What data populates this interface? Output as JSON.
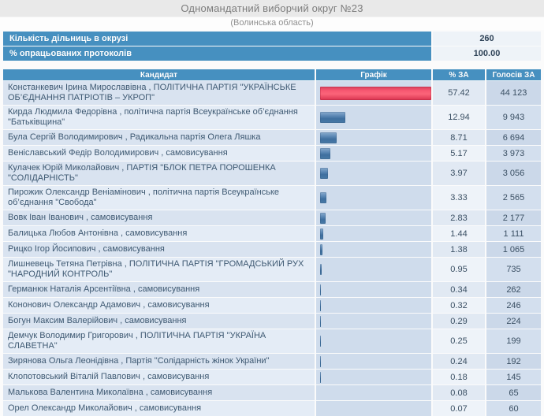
{
  "page": {
    "title": "Одномандатний виборчий округ №23",
    "subtitle": "(Волинська область)"
  },
  "summary": [
    {
      "label": "Кількість дільниць в окрузі",
      "value": "260"
    },
    {
      "label": "% опрацьованих протоколів",
      "value": "100.00"
    }
  ],
  "results_table": {
    "columns": {
      "candidate": "Кандидат",
      "graph": "Графік",
      "percent": "% ЗА",
      "votes": "Голосів ЗА"
    },
    "max_percent": 57.42,
    "rows": [
      {
        "candidate": "Констанкевич Ірина Мирославівна , ПОЛІТИЧНА ПАРТІЯ \"УКРАЇНСЬКЕ ОБ’ЄДНАННЯ ПАТРІОТІВ – УКРОП\"",
        "percent": "57.42",
        "votes": "44 123",
        "winner": true
      },
      {
        "candidate": "Кирда Людмила Федорівна , політична партія Всеукраїнське об’єднання \"Батьківщина\"",
        "percent": "12.94",
        "votes": "9 943",
        "winner": false
      },
      {
        "candidate": "Була Сергій Володимирович , Радикальна партія Олега Ляшка",
        "percent": "8.71",
        "votes": "6 694",
        "winner": false
      },
      {
        "candidate": "Веніславський Федір Володимирович , самовисування",
        "percent": "5.17",
        "votes": "3 973",
        "winner": false
      },
      {
        "candidate": "Кулачек Юрій Миколайович , ПАРТІЯ \"БЛОК ПЕТРА ПОРОШЕНКА \"СОЛІДАРНІСТЬ\"",
        "percent": "3.97",
        "votes": "3 056",
        "winner": false
      },
      {
        "candidate": "Пирожик Олександр Веніамінович , політична партія Всеукраїнське об’єднання \"Свобода\"",
        "percent": "3.33",
        "votes": "2 565",
        "winner": false
      },
      {
        "candidate": "Вовк Іван Іванович , самовисування",
        "percent": "2.83",
        "votes": "2 177",
        "winner": false
      },
      {
        "candidate": "Балицька Любов Антонівна , самовисування",
        "percent": "1.44",
        "votes": "1 111",
        "winner": false
      },
      {
        "candidate": "Рицко Ігор Йосипович , самовисування",
        "percent": "1.38",
        "votes": "1 065",
        "winner": false
      },
      {
        "candidate": "Лишневець Тетяна Петрівна , ПОЛІТИЧНА ПАРТІЯ \"ГРОМАДСЬКИЙ РУХ \"НАРОДНИЙ КОНТРОЛЬ\"",
        "percent": "0.95",
        "votes": "735",
        "winner": false
      },
      {
        "candidate": "Германюк Наталія Арсентіївна , самовисування",
        "percent": "0.34",
        "votes": "262",
        "winner": false
      },
      {
        "candidate": "Кононович Олександр Адамович , самовисування",
        "percent": "0.32",
        "votes": "246",
        "winner": false
      },
      {
        "candidate": "Богун Максим Валерійович , самовисування",
        "percent": "0.29",
        "votes": "224",
        "winner": false
      },
      {
        "candidate": "Демчук Володимир Григорович , ПОЛІТИЧНА ПАРТІЯ \"УКРАЇНА СЛАВЕТНА\"",
        "percent": "0.25",
        "votes": "199",
        "winner": false
      },
      {
        "candidate": "Зирянова Ольга Леонідівна , Партія \"Солідарність жінок України\"",
        "percent": "0.24",
        "votes": "192",
        "winner": false
      },
      {
        "candidate": "Клопотовський Віталій Павлович , самовисування",
        "percent": "0.18",
        "votes": "145",
        "winner": false
      },
      {
        "candidate": "Малькова Валентина Миколаївна , самовисування",
        "percent": "0.08",
        "votes": "65",
        "winner": false
      },
      {
        "candidate": "Орел Олександр Миколайович , самовисування",
        "percent": "0.07",
        "votes": "60",
        "winner": false
      }
    ]
  },
  "colors": {
    "header_bar": "#4690c0",
    "winner_bar": "#f0425f",
    "bar_blue": "#4e7dab"
  }
}
